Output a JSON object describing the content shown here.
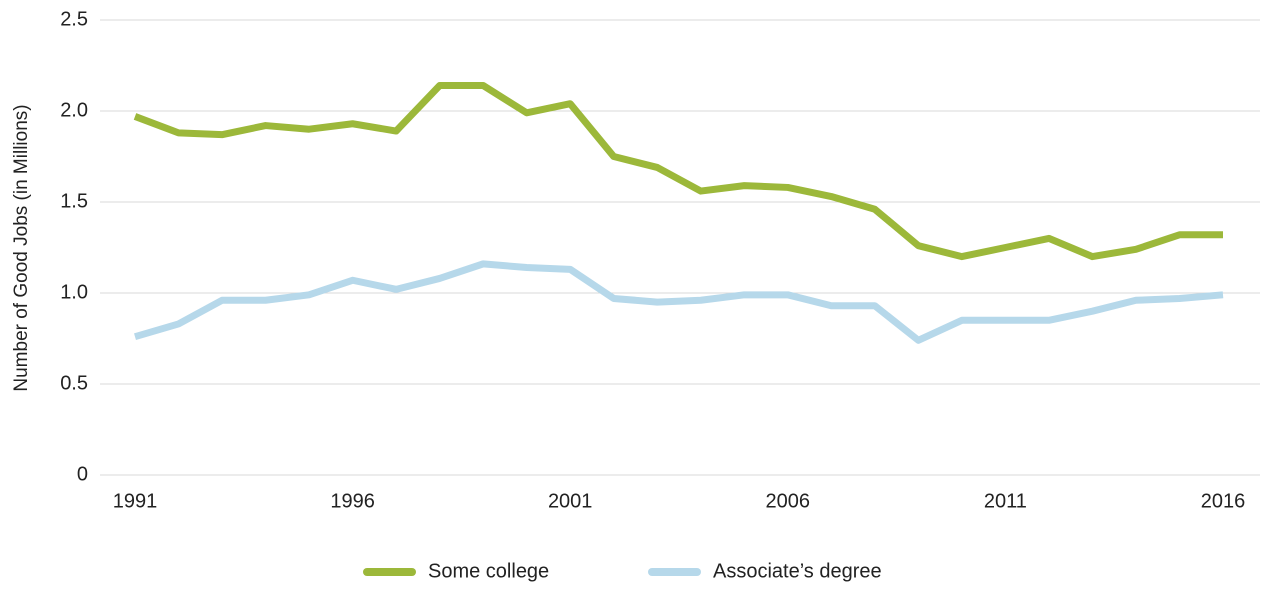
{
  "chart_data": {
    "type": "line",
    "y_label": "Number of Good Jobs (in Millions)",
    "x": [
      1991,
      1992,
      1993,
      1994,
      1995,
      1996,
      1997,
      1998,
      1999,
      2000,
      2001,
      2002,
      2003,
      2004,
      2005,
      2006,
      2007,
      2008,
      2009,
      2010,
      2011,
      2012,
      2013,
      2014,
      2015,
      2016
    ],
    "series": [
      {
        "name": "Some college",
        "color": "#9cb83a",
        "values": [
          1.97,
          1.88,
          1.87,
          1.92,
          1.9,
          1.93,
          1.89,
          2.14,
          2.14,
          1.99,
          2.04,
          1.75,
          1.69,
          1.56,
          1.59,
          1.58,
          1.53,
          1.46,
          1.26,
          1.2,
          1.25,
          1.3,
          1.2,
          1.24,
          1.32,
          1.32
        ]
      },
      {
        "name": "Associate’s degree",
        "color": "#b6d8ea",
        "values": [
          0.76,
          0.83,
          0.96,
          0.96,
          0.99,
          1.07,
          1.02,
          1.08,
          1.16,
          1.14,
          1.13,
          0.97,
          0.95,
          0.96,
          0.99,
          0.99,
          0.93,
          0.93,
          0.74,
          0.85,
          0.85,
          0.85,
          0.9,
          0.96,
          0.97,
          0.99
        ]
      }
    ],
    "xlim": [
      1991,
      2016
    ],
    "xticks": [
      1991,
      1996,
      2001,
      2006,
      2011,
      2016
    ],
    "ylim": [
      0,
      2.5
    ],
    "yticks": [
      0,
      0.5,
      {
        "value": 1.0,
        "label": "1.0"
      },
      1.5,
      {
        "value": 2.0,
        "label": "2.0"
      },
      2.5
    ],
    "grid": true,
    "legend": "bottom"
  }
}
